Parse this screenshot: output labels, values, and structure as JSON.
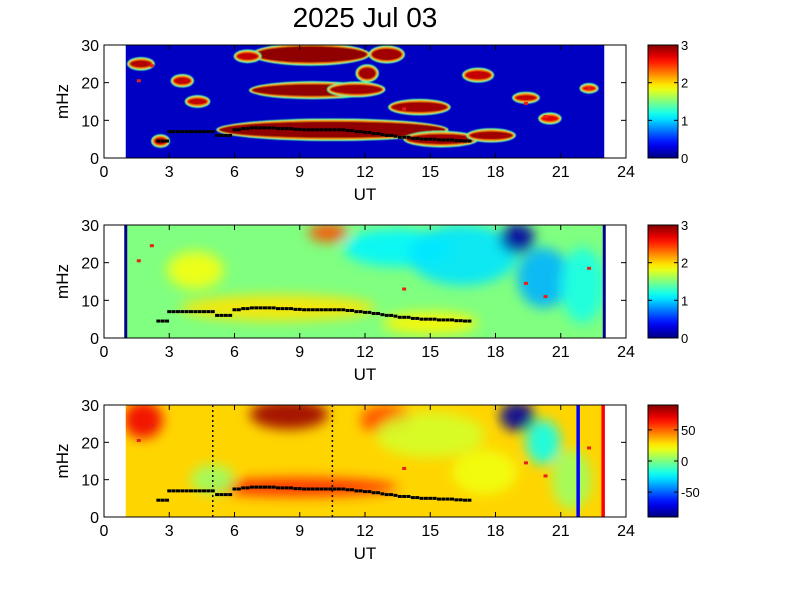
{
  "title": "2025 Jul 03",
  "chart_data": [
    {
      "type": "heatmap",
      "panel": "top",
      "xlabel": "UT",
      "ylabel": "mHz",
      "xlim": [
        0,
        24
      ],
      "ylim": [
        0,
        30
      ],
      "xticks": [
        "0",
        "3",
        "6",
        "9",
        "12",
        "15",
        "18",
        "21",
        "24"
      ],
      "yticks": [
        "0",
        "10",
        "20",
        "30"
      ],
      "colorbar": {
        "range": [
          0,
          3
        ],
        "ticks": [
          "0",
          "1",
          "2",
          "3"
        ],
        "colormap": "jet"
      },
      "data_coverage_ut": [
        1.0,
        23.0
      ],
      "background_level": 0.2,
      "blobs": [
        {
          "ut": 10.5,
          "mhz": 7.5,
          "rx": 5.2,
          "ry": 2.2,
          "level": 2.95
        },
        {
          "ut": 15.5,
          "mhz": 5.0,
          "rx": 1.6,
          "ry": 1.4,
          "level": 2.9
        },
        {
          "ut": 17.8,
          "mhz": 6.0,
          "rx": 1.0,
          "ry": 1.1,
          "level": 2.9
        },
        {
          "ut": 9.6,
          "mhz": 18.0,
          "rx": 2.8,
          "ry": 1.6,
          "level": 2.95
        },
        {
          "ut": 11.6,
          "mhz": 18.2,
          "rx": 1.2,
          "ry": 1.3,
          "level": 2.9
        },
        {
          "ut": 9.5,
          "mhz": 27.5,
          "rx": 2.6,
          "ry": 2.2,
          "level": 2.95
        },
        {
          "ut": 12.1,
          "mhz": 22.5,
          "rx": 0.4,
          "ry": 1.6,
          "level": 2.9
        },
        {
          "ut": 13.0,
          "mhz": 27.5,
          "rx": 0.7,
          "ry": 1.6,
          "level": 2.9
        },
        {
          "ut": 14.5,
          "mhz": 13.5,
          "rx": 1.3,
          "ry": 1.4,
          "level": 2.9
        },
        {
          "ut": 1.7,
          "mhz": 25.0,
          "rx": 0.5,
          "ry": 1.0,
          "level": 2.85
        },
        {
          "ut": 3.6,
          "mhz": 20.5,
          "rx": 0.4,
          "ry": 1.0,
          "level": 2.8
        },
        {
          "ut": 4.3,
          "mhz": 15.0,
          "rx": 0.45,
          "ry": 0.9,
          "level": 2.8
        },
        {
          "ut": 6.6,
          "mhz": 27.0,
          "rx": 0.5,
          "ry": 1.0,
          "level": 2.8
        },
        {
          "ut": 17.2,
          "mhz": 22.0,
          "rx": 0.6,
          "ry": 1.2,
          "level": 2.8
        },
        {
          "ut": 19.4,
          "mhz": 16.0,
          "rx": 0.5,
          "ry": 0.8,
          "level": 2.8
        },
        {
          "ut": 20.5,
          "mhz": 10.5,
          "rx": 0.4,
          "ry": 0.8,
          "level": 2.7
        },
        {
          "ut": 22.3,
          "mhz": 18.5,
          "rx": 0.3,
          "ry": 0.6,
          "level": 2.7
        },
        {
          "ut": 2.6,
          "mhz": 4.5,
          "rx": 0.3,
          "ry": 1.0,
          "level": 2.8
        }
      ]
    },
    {
      "type": "heatmap",
      "panel": "middle",
      "xlabel": "UT",
      "ylabel": "mHz",
      "xlim": [
        0,
        24
      ],
      "ylim": [
        0,
        30
      ],
      "xticks": [
        "0",
        "3",
        "6",
        "9",
        "12",
        "15",
        "18",
        "21",
        "24"
      ],
      "yticks": [
        "0",
        "10",
        "20",
        "30"
      ],
      "colorbar": {
        "range": [
          0,
          3
        ],
        "ticks": [
          "0",
          "1",
          "2",
          "3"
        ],
        "colormap": "jet"
      },
      "data_coverage_ut": [
        1.0,
        23.0
      ],
      "background_level": 1.5,
      "blobs": [
        {
          "ut": 8.0,
          "mhz": 8.0,
          "rx": 4.5,
          "ry": 3.5,
          "level": 1.95
        },
        {
          "ut": 15.0,
          "mhz": 4.0,
          "rx": 2.2,
          "ry": 3.0,
          "level": 1.9
        },
        {
          "ut": 10.3,
          "mhz": 28.0,
          "rx": 0.9,
          "ry": 2.5,
          "level": 2.4
        },
        {
          "ut": 4.2,
          "mhz": 18.0,
          "rx": 1.3,
          "ry": 5.0,
          "level": 1.85
        },
        {
          "ut": 13.5,
          "mhz": 24.0,
          "rx": 2.5,
          "ry": 5.0,
          "level": 1.1
        },
        {
          "ut": 16.5,
          "mhz": 22.0,
          "rx": 2.5,
          "ry": 8.0,
          "level": 1.05
        },
        {
          "ut": 19.0,
          "mhz": 26.5,
          "rx": 0.8,
          "ry": 4.0,
          "level": 0.1
        },
        {
          "ut": 20.2,
          "mhz": 16.0,
          "rx": 1.2,
          "ry": 8.0,
          "level": 0.9
        },
        {
          "ut": 22.0,
          "mhz": 14.0,
          "rx": 1.0,
          "ry": 10.0,
          "level": 1.2
        }
      ],
      "edge_lines_ut": [
        1.0,
        23.0
      ]
    },
    {
      "type": "heatmap",
      "panel": "bottom",
      "xlabel": "UT",
      "ylabel": "mHz",
      "xlim": [
        0,
        24
      ],
      "ylim": [
        0,
        30
      ],
      "xticks": [
        "0",
        "3",
        "6",
        "9",
        "12",
        "15",
        "18",
        "21",
        "24"
      ],
      "yticks": [
        "0",
        "10",
        "20",
        "30"
      ],
      "colorbar": {
        "range": [
          -90,
          90
        ],
        "ticks": [
          "50",
          "0",
          "-50"
        ],
        "tick_values": [
          50,
          0,
          -50
        ],
        "colormap": "jet"
      },
      "data_coverage_ut": [
        1.0,
        23.0
      ],
      "background_level": 30,
      "blobs": [
        {
          "ut": 8.5,
          "mhz": 27.5,
          "rx": 1.8,
          "ry": 4.0,
          "level": 85
        },
        {
          "ut": 1.8,
          "mhz": 26.0,
          "rx": 0.9,
          "ry": 5.0,
          "level": 70
        },
        {
          "ut": 9.0,
          "mhz": 8.0,
          "rx": 4.5,
          "ry": 2.5,
          "level": 60
        },
        {
          "ut": 13.0,
          "mhz": 26.0,
          "rx": 1.2,
          "ry": 4.0,
          "level": 55
        },
        {
          "ut": 5.0,
          "mhz": 10.0,
          "rx": 1.0,
          "ry": 4.0,
          "level": 5
        },
        {
          "ut": 15.0,
          "mhz": 22.0,
          "rx": 2.5,
          "ry": 6.0,
          "level": 15
        },
        {
          "ut": 17.5,
          "mhz": 12.0,
          "rx": 1.5,
          "ry": 6.0,
          "level": 20
        },
        {
          "ut": 19.0,
          "mhz": 27.0,
          "rx": 0.8,
          "ry": 4.0,
          "level": -85
        },
        {
          "ut": 20.2,
          "mhz": 20.0,
          "rx": 0.8,
          "ry": 6.0,
          "level": -20
        },
        {
          "ut": 21.5,
          "mhz": 10.0,
          "rx": 0.9,
          "ry": 8.0,
          "level": 5
        }
      ],
      "vertical_markers": [
        {
          "ut": 5.0,
          "style": "dotted",
          "color": "#000000"
        },
        {
          "ut": 10.5,
          "style": "dotted",
          "color": "#000000"
        },
        {
          "ut": 21.8,
          "style": "solid",
          "color": "#0000ff"
        },
        {
          "ut": 22.95,
          "style": "solid",
          "color": "#ff0000"
        }
      ]
    }
  ],
  "trace": {
    "color": "#000000",
    "points": [
      [
        2.5,
        4.5
      ],
      [
        2.7,
        4.5
      ],
      [
        2.9,
        4.5
      ],
      [
        3.0,
        7.0
      ],
      [
        3.2,
        7.0
      ],
      [
        3.4,
        7.0
      ],
      [
        3.6,
        7.0
      ],
      [
        3.8,
        7.0
      ],
      [
        4.0,
        7.0
      ],
      [
        4.2,
        7.0
      ],
      [
        4.4,
        7.0
      ],
      [
        4.6,
        7.0
      ],
      [
        4.8,
        7.0
      ],
      [
        5.0,
        7.0
      ],
      [
        5.2,
        6.0
      ],
      [
        5.4,
        6.0
      ],
      [
        5.6,
        6.0
      ],
      [
        5.8,
        6.0
      ],
      [
        6.0,
        7.5
      ],
      [
        6.2,
        7.5
      ],
      [
        6.4,
        7.8
      ],
      [
        6.6,
        7.8
      ],
      [
        6.8,
        8.0
      ],
      [
        7.0,
        8.0
      ],
      [
        7.2,
        8.0
      ],
      [
        7.4,
        8.0
      ],
      [
        7.6,
        8.0
      ],
      [
        7.8,
        8.0
      ],
      [
        8.0,
        7.8
      ],
      [
        8.2,
        7.8
      ],
      [
        8.4,
        7.8
      ],
      [
        8.6,
        7.8
      ],
      [
        8.8,
        7.6
      ],
      [
        9.0,
        7.6
      ],
      [
        9.2,
        7.5
      ],
      [
        9.4,
        7.5
      ],
      [
        9.6,
        7.5
      ],
      [
        9.8,
        7.5
      ],
      [
        10.0,
        7.5
      ],
      [
        10.2,
        7.5
      ],
      [
        10.4,
        7.5
      ],
      [
        10.6,
        7.5
      ],
      [
        10.8,
        7.5
      ],
      [
        11.0,
        7.5
      ],
      [
        11.2,
        7.3
      ],
      [
        11.4,
        7.3
      ],
      [
        11.6,
        7.0
      ],
      [
        11.8,
        7.0
      ],
      [
        12.0,
        6.8
      ],
      [
        12.2,
        6.8
      ],
      [
        12.4,
        6.5
      ],
      [
        12.6,
        6.5
      ],
      [
        12.8,
        6.2
      ],
      [
        13.0,
        6.0
      ],
      [
        13.2,
        6.0
      ],
      [
        13.4,
        5.8
      ],
      [
        13.6,
        5.5
      ],
      [
        13.8,
        5.5
      ],
      [
        14.0,
        5.5
      ],
      [
        14.2,
        5.2
      ],
      [
        14.4,
        5.2
      ],
      [
        14.6,
        5.0
      ],
      [
        14.8,
        5.0
      ],
      [
        15.0,
        5.0
      ],
      [
        15.2,
        5.0
      ],
      [
        15.4,
        4.8
      ],
      [
        15.6,
        4.8
      ],
      [
        15.8,
        4.8
      ],
      [
        16.0,
        4.8
      ],
      [
        16.2,
        4.6
      ],
      [
        16.4,
        4.6
      ],
      [
        16.6,
        4.5
      ],
      [
        16.8,
        4.5
      ]
    ]
  },
  "red_markers": [
    [
      1.6,
      20.5
    ],
    [
      2.2,
      24.5
    ],
    [
      13.8,
      13.0
    ],
    [
      19.4,
      14.5
    ],
    [
      20.3,
      11.0
    ],
    [
      22.3,
      18.5
    ]
  ]
}
